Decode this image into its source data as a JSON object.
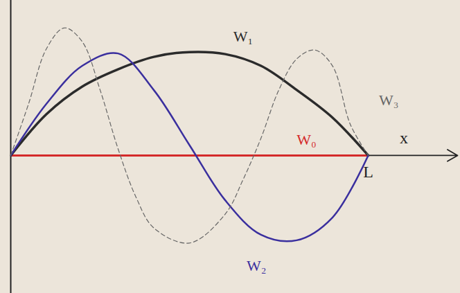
{
  "chart_data": {
    "type": "line",
    "xlabel": "x",
    "xlim": [
      0,
      12.5
    ],
    "ylim": [
      -4,
      4.5
    ],
    "xticks": [
      {
        "value": 10,
        "label": "L"
      }
    ],
    "tick_labels": "x",
    "grid": false,
    "series": [
      {
        "name": "W₀",
        "color": "#d42a2a",
        "line_style": "solid",
        "x": [
          0,
          10
        ],
        "values": [
          0,
          0
        ]
      },
      {
        "name": "W₁",
        "color": "#2b2b2b",
        "line_style": "solid",
        "x": [
          0,
          1,
          2,
          3,
          4,
          5,
          6,
          7,
          8,
          9,
          10
        ],
        "values": [
          0,
          1.2,
          2.0,
          2.5,
          2.86,
          3.0,
          2.94,
          2.6,
          1.9,
          1.1,
          0
        ]
      },
      {
        "name": "W₂",
        "color": "#3a2f9e",
        "line_style": "solid",
        "x": [
          0,
          1,
          2,
          3,
          4,
          5,
          6,
          7,
          8,
          9,
          10
        ],
        "values": [
          0,
          1.5,
          2.6,
          2.96,
          1.9,
          0.3,
          -1.3,
          -2.3,
          -2.46,
          -1.8,
          0
        ]
      },
      {
        "name": "W₃",
        "color": "#666666",
        "line_style": "dashed",
        "x": [
          0,
          0.5,
          1,
          1.5,
          2,
          2.5,
          3,
          3.5,
          4,
          5,
          6,
          6.5,
          7,
          7.5,
          8,
          8.5,
          9,
          9.5,
          10
        ],
        "values": [
          0,
          1.5,
          3.1,
          3.7,
          3.3,
          1.9,
          0.2,
          -1.2,
          -2.1,
          -2.54,
          -1.7,
          -0.7,
          0.5,
          1.9,
          2.8,
          3.06,
          2.6,
          0.9,
          0
        ]
      }
    ]
  }
}
